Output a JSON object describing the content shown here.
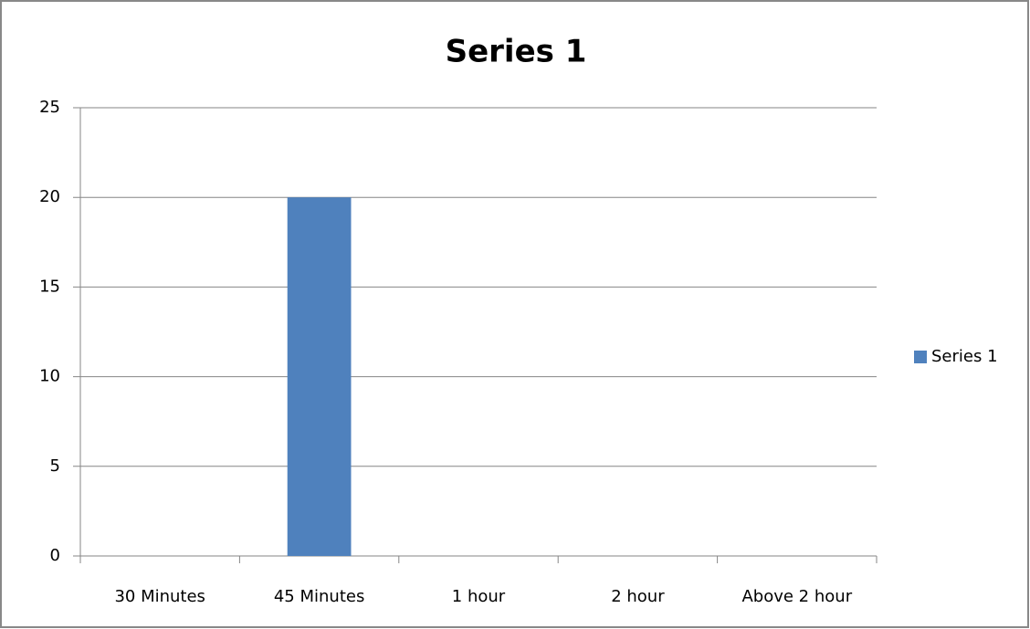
{
  "chart_data": {
    "type": "bar",
    "title": "Series 1",
    "categories": [
      "30 Minutes",
      "45 Minutes",
      "1 hour",
      "2 hour",
      "Above 2 hour"
    ],
    "series": [
      {
        "name": "Series 1",
        "color": "#4f81bd",
        "values": [
          0,
          20,
          0,
          0,
          0
        ]
      }
    ],
    "ylim": [
      0,
      25
    ],
    "yticks": [
      0,
      5,
      10,
      15,
      20,
      25
    ],
    "grid": true,
    "legend": "right"
  }
}
